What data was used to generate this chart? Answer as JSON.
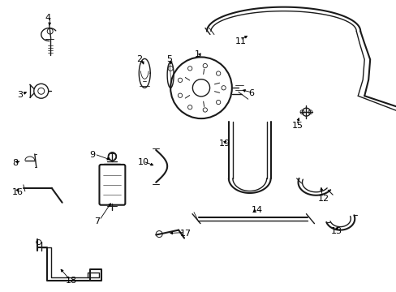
{
  "background_color": "#ffffff",
  "line_color": "#1a1a1a",
  "label_color": "#000000",
  "figsize": [
    4.89,
    3.6
  ],
  "dpi": 100,
  "xlim": [
    0,
    489
  ],
  "ylim": [
    0,
    360
  ]
}
